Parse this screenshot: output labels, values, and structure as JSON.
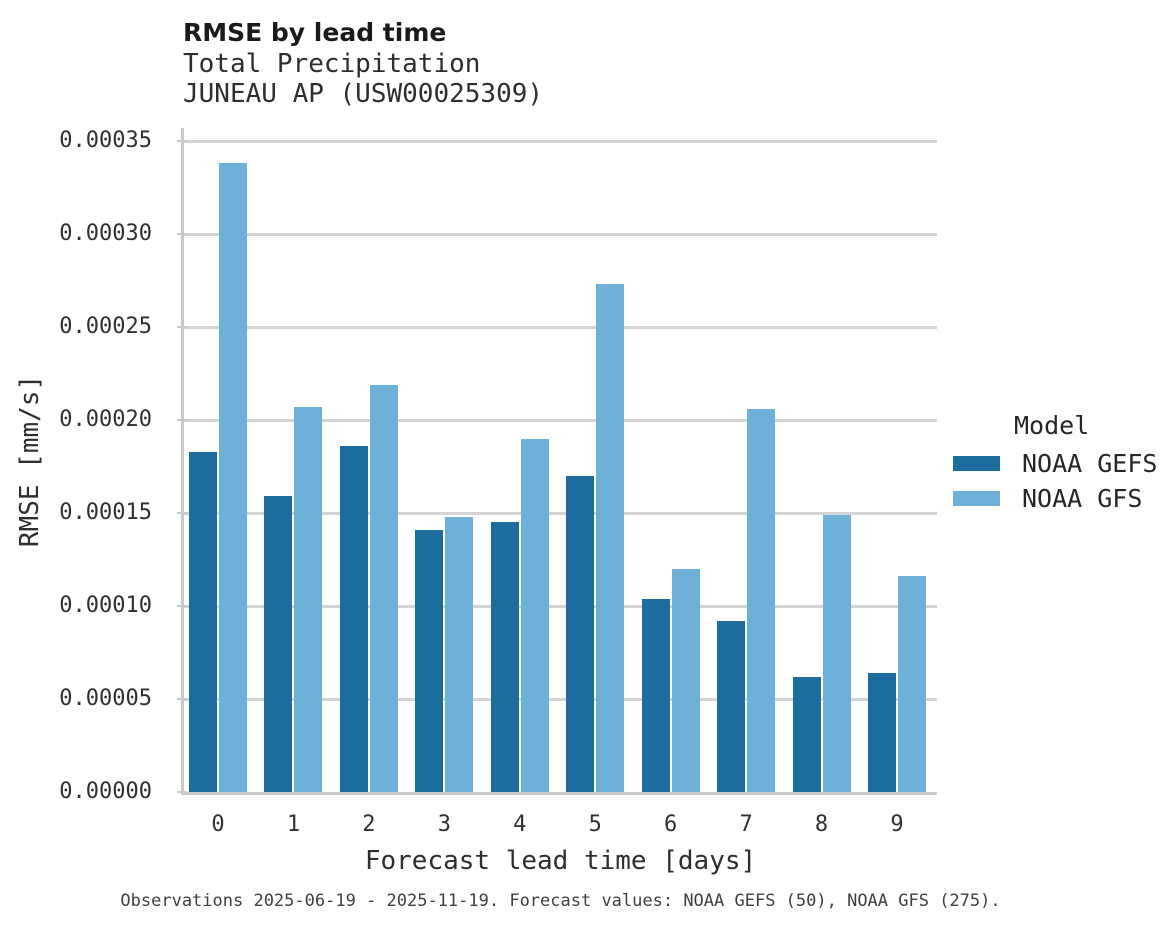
{
  "header": {
    "title": "RMSE by lead time",
    "subtitle1": "Total Precipitation",
    "subtitle2": "JUNEAU AP (USW00025309)"
  },
  "chart_data": {
    "type": "bar",
    "title": "RMSE by lead time",
    "subtitle": "Total Precipitation — JUNEAU AP (USW00025309)",
    "categories": [
      "0",
      "1",
      "2",
      "3",
      "4",
      "5",
      "6",
      "7",
      "8",
      "9"
    ],
    "series": [
      {
        "name": "NOAA GEFS",
        "color": "#1c6d9e",
        "values": [
          0.000183,
          0.000159,
          0.000186,
          0.000141,
          0.000145,
          0.00017,
          0.000104,
          9.2e-05,
          6.2e-05,
          6.4e-05
        ]
      },
      {
        "name": "NOAA GFS",
        "color": "#6db1d8",
        "values": [
          0.000338,
          0.000207,
          0.000219,
          0.000148,
          0.00019,
          0.000273,
          0.00012,
          0.000206,
          0.000149,
          0.000116
        ]
      }
    ],
    "xlabel": "Forecast lead time [days]",
    "ylabel": "RMSE [mm/s]",
    "ylim": [
      0,
      0.000357
    ],
    "yticks": [
      0.0,
      5e-05,
      0.0001,
      0.00015,
      0.0002,
      0.00025,
      0.0003,
      0.00035
    ],
    "ytick_labels": [
      "0.00000",
      "0.00005",
      "0.00010",
      "0.00015",
      "0.00020",
      "0.00025",
      "0.00030",
      "0.00035"
    ],
    "grid": true,
    "legend_title": "Model",
    "legend_position": "right"
  },
  "footer": {
    "caption": "Observations 2025-06-19 - 2025-11-19. Forecast values: NOAA GEFS (50), NOAA GFS (275)."
  },
  "colors": {
    "gefs_bar": "#1c6d9e",
    "gfs_bar": "#6db1d8",
    "gridline": "#d4d4d4",
    "axis_spine": "#c9c9c9",
    "title_text": "#1a1a1a",
    "tick_text": "#303030",
    "footer_text": "#3f3f3f"
  }
}
